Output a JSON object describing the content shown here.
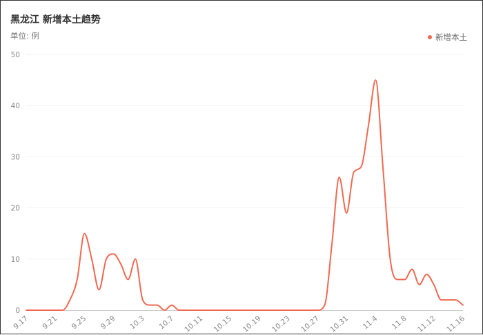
{
  "header": {
    "title": "黑龙江 新增本土趋势",
    "unit": "单位: 例"
  },
  "colors": {
    "series": "#f16850",
    "grid": "#f2f2f2",
    "axis": "#cccccc"
  },
  "chart_data": {
    "type": "line",
    "title": "黑龙江 新增本土趋势",
    "subtitle": "单位: 例",
    "xlabel": "",
    "ylabel": "",
    "ylim": [
      0,
      50
    ],
    "yticks": [
      0,
      10,
      20,
      30,
      40,
      50
    ],
    "grid": true,
    "legend_position": "top-right",
    "tick_labels": [
      "9.17",
      "9.21",
      "9.25",
      "9.29",
      "10.3",
      "10.7",
      "10.11",
      "10.15",
      "10.19",
      "10.23",
      "10.27",
      "10.31",
      "11.4",
      "11.8",
      "11.12",
      "11.16"
    ],
    "x": [
      "9.17",
      "9.18",
      "9.19",
      "9.20",
      "9.21",
      "9.22",
      "9.23",
      "9.24",
      "9.25",
      "9.26",
      "9.27",
      "9.28",
      "9.29",
      "9.30",
      "10.1",
      "10.2",
      "10.3",
      "10.4",
      "10.5",
      "10.6",
      "10.7",
      "10.8",
      "10.9",
      "10.10",
      "10.11",
      "10.12",
      "10.13",
      "10.14",
      "10.15",
      "10.16",
      "10.17",
      "10.18",
      "10.19",
      "10.20",
      "10.21",
      "10.22",
      "10.23",
      "10.24",
      "10.25",
      "10.26",
      "10.27",
      "10.28",
      "10.29",
      "10.30",
      "10.31",
      "11.1",
      "11.2",
      "11.3",
      "11.4",
      "11.5",
      "11.6",
      "11.7",
      "11.8",
      "11.9",
      "11.10",
      "11.11",
      "11.12",
      "11.13",
      "11.14",
      "11.15",
      "11.16"
    ],
    "series": [
      {
        "name": "新增本土",
        "values": [
          0,
          0,
          0,
          0,
          0,
          0,
          2,
          6,
          15,
          10,
          4,
          10,
          11,
          9,
          6,
          10,
          2,
          1,
          1,
          0,
          1,
          0,
          0,
          0,
          0,
          0,
          0,
          0,
          0,
          0,
          0,
          0,
          0,
          0,
          0,
          0,
          0,
          0,
          0,
          0,
          0,
          1,
          13,
          26,
          19,
          27,
          28,
          36,
          45,
          28,
          10,
          6,
          6,
          8,
          5,
          7,
          5,
          2,
          2,
          2,
          1
        ]
      }
    ]
  }
}
